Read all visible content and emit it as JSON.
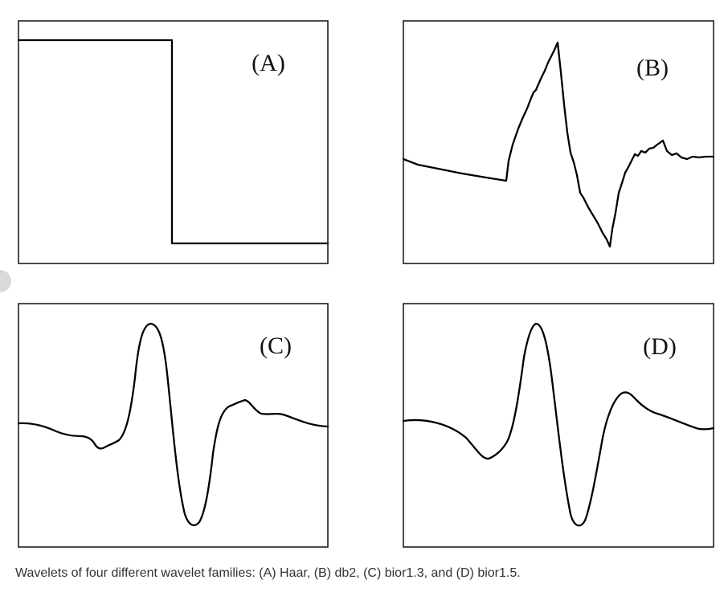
{
  "panels": [
    {
      "id": "A",
      "label": "(A)",
      "family": "Haar"
    },
    {
      "id": "B",
      "label": "(B)",
      "family": "db2"
    },
    {
      "id": "C",
      "label": "(C)",
      "family": "bior1.3"
    },
    {
      "id": "D",
      "label": "(D)",
      "family": "bior1.5"
    }
  ],
  "caption": "Wavelets of four different wavelet families: (A) Haar, (B) db2, (C) bior1.3, and (D) bior1.5."
}
